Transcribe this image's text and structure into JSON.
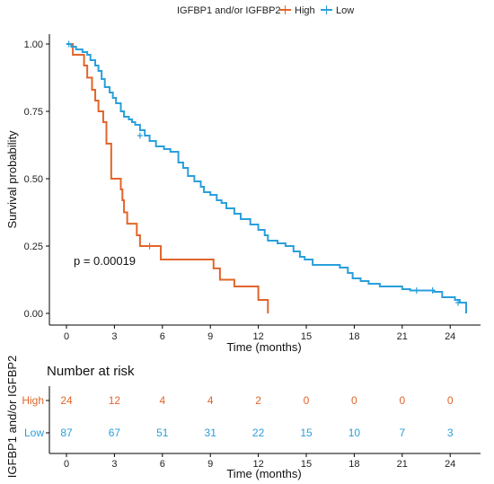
{
  "legend": {
    "title": "IGFBP1 and/or IGFBP2",
    "entries": [
      {
        "label": "High",
        "color": "#E2652A"
      },
      {
        "label": "Low",
        "color": "#2A9FDB"
      }
    ]
  },
  "chart_data": {
    "type": "line",
    "subtype": "kaplan-meier step curve",
    "xlabel": "Time (months)",
    "ylabel": "Survival probability",
    "xlim": [
      0,
      25
    ],
    "ylim": [
      0,
      1
    ],
    "xticks": [
      "0",
      "3",
      "6",
      "9",
      "12",
      "15",
      "18",
      "21",
      "24"
    ],
    "yticks": [
      "0.00",
      "0.25",
      "0.50",
      "0.75",
      "1.00"
    ],
    "grid": false,
    "legend_position": "top",
    "annotation": "p = 0.00019",
    "series": [
      {
        "name": "High",
        "color": "#E2652A",
        "steps": [
          [
            0,
            1.0
          ],
          [
            0.4,
            0.96
          ],
          [
            1.1,
            0.92
          ],
          [
            1.3,
            0.875
          ],
          [
            1.6,
            0.83
          ],
          [
            1.8,
            0.79
          ],
          [
            2.0,
            0.75
          ],
          [
            2.3,
            0.71
          ],
          [
            2.5,
            0.63
          ],
          [
            2.8,
            0.5
          ],
          [
            3.4,
            0.46
          ],
          [
            3.5,
            0.42
          ],
          [
            3.6,
            0.375
          ],
          [
            3.8,
            0.333
          ],
          [
            4.4,
            0.29
          ],
          [
            4.6,
            0.25
          ],
          [
            5.9,
            0.2
          ],
          [
            9.2,
            0.167
          ],
          [
            9.6,
            0.125
          ],
          [
            10.5,
            0.1
          ],
          [
            12.0,
            0.05
          ],
          [
            12.6,
            0.0
          ]
        ],
        "censored": [
          [
            5.2,
            0.25
          ]
        ]
      },
      {
        "name": "Low",
        "color": "#2A9FDB",
        "steps": [
          [
            0,
            1.0
          ],
          [
            0.3,
            0.99
          ],
          [
            0.6,
            0.98
          ],
          [
            1.0,
            0.97
          ],
          [
            1.3,
            0.96
          ],
          [
            1.5,
            0.94
          ],
          [
            1.8,
            0.92
          ],
          [
            2.0,
            0.9
          ],
          [
            2.2,
            0.87
          ],
          [
            2.4,
            0.84
          ],
          [
            2.7,
            0.82
          ],
          [
            2.9,
            0.8
          ],
          [
            3.1,
            0.78
          ],
          [
            3.4,
            0.75
          ],
          [
            3.6,
            0.73
          ],
          [
            3.9,
            0.72
          ],
          [
            4.1,
            0.71
          ],
          [
            4.3,
            0.7
          ],
          [
            4.6,
            0.68
          ],
          [
            4.9,
            0.66
          ],
          [
            5.2,
            0.64
          ],
          [
            5.6,
            0.62
          ],
          [
            6.1,
            0.61
          ],
          [
            6.5,
            0.6
          ],
          [
            7.0,
            0.56
          ],
          [
            7.3,
            0.54
          ],
          [
            7.6,
            0.51
          ],
          [
            8.0,
            0.49
          ],
          [
            8.4,
            0.47
          ],
          [
            8.6,
            0.45
          ],
          [
            9.0,
            0.44
          ],
          [
            9.4,
            0.42
          ],
          [
            9.7,
            0.41
          ],
          [
            10.0,
            0.39
          ],
          [
            10.5,
            0.37
          ],
          [
            10.9,
            0.35
          ],
          [
            11.5,
            0.33
          ],
          [
            12.0,
            0.31
          ],
          [
            12.4,
            0.29
          ],
          [
            12.6,
            0.27
          ],
          [
            13.2,
            0.26
          ],
          [
            13.7,
            0.25
          ],
          [
            14.2,
            0.23
          ],
          [
            14.6,
            0.21
          ],
          [
            14.9,
            0.2
          ],
          [
            15.4,
            0.18
          ],
          [
            17.1,
            0.17
          ],
          [
            17.6,
            0.15
          ],
          [
            17.9,
            0.13
          ],
          [
            18.4,
            0.12
          ],
          [
            18.9,
            0.11
          ],
          [
            19.6,
            0.1
          ],
          [
            21.0,
            0.09
          ],
          [
            21.5,
            0.085
          ],
          [
            23.0,
            0.08
          ],
          [
            23.5,
            0.06
          ],
          [
            24.3,
            0.05
          ],
          [
            24.6,
            0.04
          ],
          [
            25.0,
            0.0
          ]
        ],
        "censored": [
          [
            0.15,
            1.0
          ],
          [
            4.6,
            0.66
          ],
          [
            21.9,
            0.085
          ],
          [
            22.9,
            0.085
          ],
          [
            24.5,
            0.04
          ]
        ]
      }
    ]
  },
  "risk_table": {
    "title": "Number at risk",
    "ylabel": "IGFBP1 and/or IGFBP2",
    "xlabel": "Time (months)",
    "times": [
      "0",
      "3",
      "6",
      "9",
      "12",
      "15",
      "18",
      "21",
      "24"
    ],
    "rows": [
      {
        "label": "High",
        "color": "#E2652A",
        "counts": [
          "24",
          "12",
          "4",
          "4",
          "2",
          "0",
          "0",
          "0",
          "0"
        ]
      },
      {
        "label": "Low",
        "color": "#2A9FDB",
        "counts": [
          "87",
          "67",
          "51",
          "31",
          "22",
          "15",
          "10",
          "7",
          "3"
        ]
      }
    ]
  }
}
